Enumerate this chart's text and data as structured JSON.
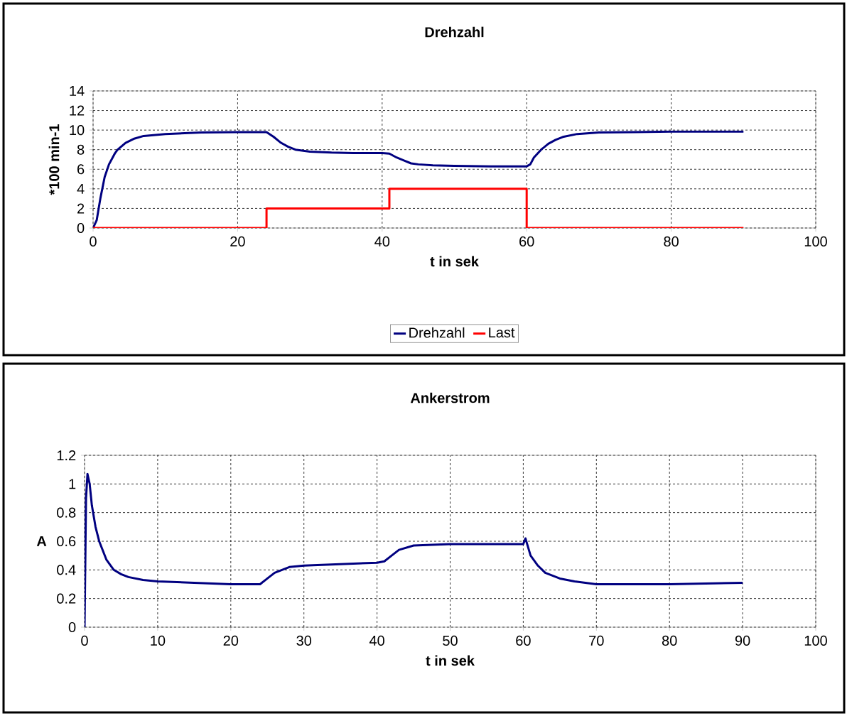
{
  "chart_data": [
    {
      "type": "line",
      "title": "Drehzahl",
      "xlabel": "t in sek",
      "ylabel": "*100 min-1",
      "xlim": [
        0,
        100
      ],
      "xticks": [
        0,
        20,
        40,
        60,
        80,
        100
      ],
      "ylim": [
        0,
        14
      ],
      "yticks": [
        0,
        2,
        4,
        6,
        8,
        10,
        12,
        14
      ],
      "grid": true,
      "legend": "bottom",
      "line_style": "solid",
      "marker": "none",
      "series": [
        {
          "name": "Drehzahl",
          "color": "#000080",
          "x": [
            0,
            0.5,
            1,
            1.6,
            2.2,
            3,
            3.4,
            4.5,
            5.6,
            7,
            10,
            15,
            20,
            24,
            25,
            26,
            27,
            28,
            30,
            33,
            36,
            40,
            41,
            42,
            43,
            44,
            45,
            47,
            50,
            55,
            60,
            60.5,
            61,
            62,
            63,
            64,
            65,
            67,
            70,
            75,
            80,
            90
          ],
          "values": [
            0,
            0.8,
            3,
            5.2,
            6.5,
            7.6,
            8,
            8.7,
            9.1,
            9.4,
            9.6,
            9.75,
            9.8,
            9.8,
            9.3,
            8.7,
            8.3,
            8.0,
            7.8,
            7.7,
            7.65,
            7.65,
            7.6,
            7.2,
            6.9,
            6.6,
            6.5,
            6.4,
            6.35,
            6.3,
            6.3,
            6.5,
            7.2,
            8.0,
            8.6,
            9.0,
            9.3,
            9.6,
            9.75,
            9.8,
            9.85,
            9.85
          ]
        },
        {
          "name": "Last",
          "color": "#ff0000",
          "x": [
            0,
            24,
            24,
            41,
            41,
            60,
            60,
            90
          ],
          "values": [
            0,
            0,
            2,
            2,
            4,
            4,
            0,
            0
          ]
        }
      ]
    },
    {
      "type": "line",
      "title": "Ankerstrom",
      "xlabel": "t in sek",
      "ylabel": "A",
      "xlim": [
        0,
        100
      ],
      "xticks": [
        0,
        10,
        20,
        30,
        40,
        50,
        60,
        70,
        80,
        90,
        100
      ],
      "ylim": [
        0,
        1.2
      ],
      "yticks": [
        0,
        0.2,
        0.4,
        0.6,
        0.8,
        1,
        1.2
      ],
      "grid": true,
      "line_style": "solid",
      "marker": "none",
      "series": [
        {
          "color": "#000080",
          "x": [
            0,
            0.2,
            0.4,
            0.7,
            1,
            1.5,
            2,
            3,
            4,
            5,
            6,
            8,
            10,
            15,
            20,
            24,
            25,
            26,
            27,
            28,
            30,
            35,
            40,
            41,
            42,
            43,
            45,
            50,
            55,
            60,
            60.3,
            61,
            62,
            63,
            65,
            67,
            70,
            80,
            90
          ],
          "values": [
            0,
            0.9,
            1.07,
            1.0,
            0.85,
            0.7,
            0.6,
            0.47,
            0.4,
            0.37,
            0.35,
            0.33,
            0.32,
            0.31,
            0.3,
            0.3,
            0.34,
            0.38,
            0.4,
            0.42,
            0.43,
            0.44,
            0.45,
            0.46,
            0.5,
            0.54,
            0.57,
            0.58,
            0.58,
            0.58,
            0.62,
            0.5,
            0.43,
            0.38,
            0.34,
            0.32,
            0.3,
            0.3,
            0.31
          ]
        }
      ]
    }
  ]
}
